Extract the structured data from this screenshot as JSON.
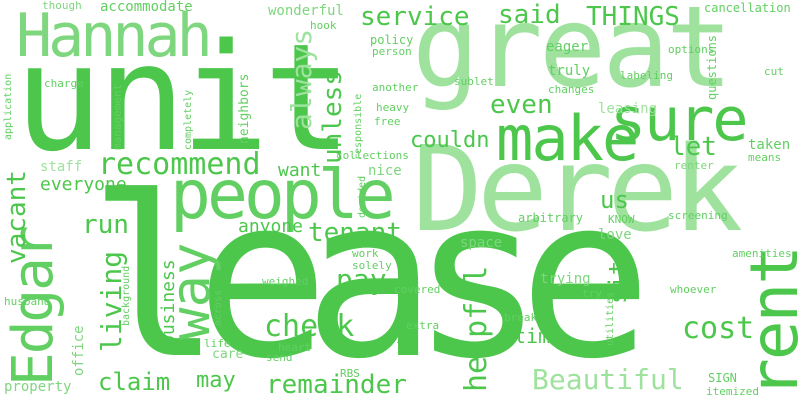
{
  "colors": {
    "primary": "#4cc74c",
    "secondary": "#62cf62",
    "tertiary": "#7ed67e",
    "light": "#9ee29e",
    "background": "#ffffff"
  },
  "words": {
    "lease": "lease",
    "unit": "unit",
    "derek": "Derek",
    "great": "great",
    "hannah": "Hannah",
    "people": "people",
    "make": "make",
    "sure": "sure",
    "rent": "rent",
    "edgar": "Edgar",
    "way": "way",
    "recommend": "recommend",
    "check": "check",
    "claim": "claim",
    "remainder": "remainder",
    "beautiful": "Beautiful",
    "cost": "cost",
    "helpful": "helpful",
    "living": "living",
    "vacant": "vacant",
    "tenant": "tenant",
    "service": "service",
    "said": "said",
    "things": "THINGS",
    "even": "even",
    "always": "always",
    "unless": "unless",
    "couldn": "couldn",
    "let": "let",
    "run": "run",
    "everyone": "everyone",
    "want": "want",
    "anyone": "anyone",
    "pay": "pay",
    "us": "us",
    "sit": "sit",
    "time": "time",
    "may": "may",
    "business": "business",
    "nice": "nice",
    "accommodate": "accommodate",
    "wonderful": "wonderful",
    "though": "though",
    "cancellation": "cancellation",
    "policy": "policy",
    "person": "person",
    "hook": "hook",
    "eager": "eager",
    "options": "options",
    "cut": "cut",
    "questions": "questions",
    "labeling": "labeling",
    "truly": "truly",
    "sublet": "sublet",
    "another": "another",
    "changes": "changes",
    "heavy": "heavy",
    "free": "free",
    "leasing": "leasing",
    "responsible": "responsible",
    "collections": "collections",
    "staff": "staff",
    "decided": "decided",
    "taken": "taken",
    "means": "means",
    "renter": "renter",
    "screening": "screening",
    "arbitrary": "arbitrary",
    "know": "KNOW",
    "love": "love",
    "space": "space",
    "amenities": "amenities",
    "work": "work",
    "solely": "solely",
    "whoever": "whoever",
    "weighed": "weighed",
    "covered": "covered",
    "trying": "trying",
    "try": "try",
    "husband": "husband",
    "background": "background",
    "across": "across",
    "extra": "extra",
    "id": "id",
    "break": "break",
    "utilities": "utilities",
    "life": "life",
    "heart": "heart",
    "care": "care",
    "send": "send",
    "rbs": "RBS",
    "sign": "SIGN",
    "itemized": "itemized",
    "property": "property",
    "office": "office",
    "application": "application",
    "charge": "charge",
    "management": "management",
    "neighbors": "neighbors",
    "completely": "completely",
    "vacant_duplicate_guard": ""
  }
}
